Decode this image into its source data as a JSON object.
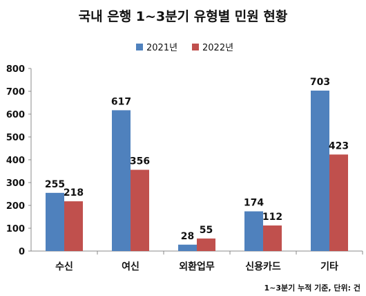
{
  "chart_data": {
    "type": "bar",
    "title": "국내 은행 1~3분기 유형별 민원 현황",
    "categories": [
      "수신",
      "여신",
      "외환업무",
      "신용카드",
      "기타"
    ],
    "series": [
      {
        "name": "2021년",
        "color": "#4f81bd",
        "values": [
          255,
          617,
          28,
          174,
          703
        ]
      },
      {
        "name": "2022년",
        "color": "#c0504d",
        "values": [
          218,
          356,
          55,
          112,
          423
        ]
      }
    ],
    "ylim": [
      0,
      800
    ],
    "yticks": [
      0,
      100,
      200,
      300,
      400,
      500,
      600,
      700,
      800
    ],
    "grid": false,
    "legend_position": "top",
    "footnote": "1~3분기 누적 기준, 단위: 건"
  }
}
